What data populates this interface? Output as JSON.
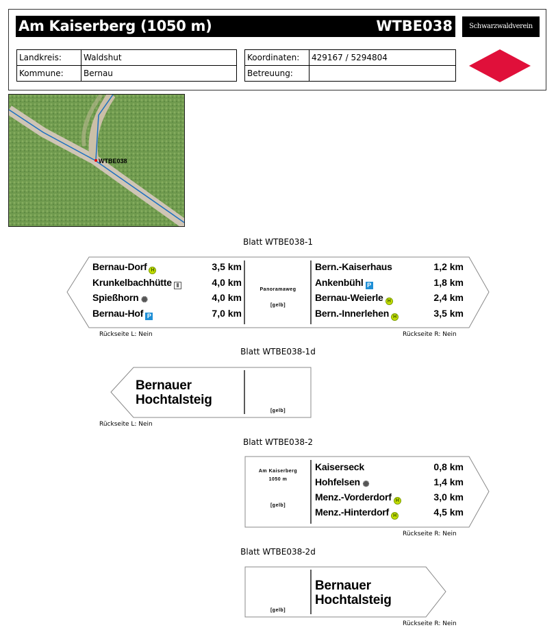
{
  "header": {
    "title": "Am Kaiserberg (1050 m)",
    "id": "WTBE038",
    "logo": "Schwarzwaldverein",
    "landkreis_label": "Landkreis:",
    "landkreis": "Waldshut",
    "kommune_label": "Kommune:",
    "kommune": "Bernau",
    "koordinaten_label": "Koordinaten:",
    "koordinaten": "429167 / 5294804",
    "betreuung_label": "Betreuung:",
    "betreuung": "",
    "diamond_color": "#e0103a"
  },
  "map": {
    "marker_label": "WTBE038",
    "route_color": "#1a6fc0"
  },
  "signs": [
    {
      "title": "Blatt WTBE038-1",
      "left": [
        {
          "name": "Bernau-Dorf",
          "icon": "bus-stop-icon",
          "km": "3,5 km"
        },
        {
          "name": "Krunkelbachhütte",
          "icon": "restaurant-icon",
          "km": "4,0 km"
        },
        {
          "name": "Spießhorn",
          "icon": "viewpoint-icon",
          "km": "4,0 km"
        },
        {
          "name": "Bernau-Hof",
          "icon": "parking-icon",
          "km": "7,0 km"
        }
      ],
      "center": {
        "route": "Panoramaweg",
        "color": "[gelb]"
      },
      "right": [
        {
          "name": "Bern.-Kaiserhaus",
          "icon": "",
          "km": "1,2 km"
        },
        {
          "name": "Ankenbühl",
          "icon": "parking-icon",
          "km": "1,8 km"
        },
        {
          "name": "Bernau-Weierle",
          "icon": "bus-stop-icon",
          "km": "2,4 km"
        },
        {
          "name": "Bern.-Innerlehen",
          "icon": "bus-stop-icon",
          "km": "3,5 km"
        }
      ],
      "back_left": "Rückseite L: Nein",
      "back_right": "Rückseite R: Nein"
    },
    {
      "title": "Blatt WTBE038-1d",
      "line1": "Bernauer",
      "line2": "Hochtalsteig",
      "color": "[gelb]",
      "back_left": "Rückseite L: Nein"
    },
    {
      "title": "Blatt WTBE038-2",
      "loc1": "Am Kaiserberg",
      "loc2": "1050 m",
      "color": "[gelb]",
      "right": [
        {
          "name": "Kaiserseck",
          "icon": "",
          "km": "0,8 km"
        },
        {
          "name": "Hohfelsen",
          "icon": "viewpoint-icon",
          "km": "1,4 km"
        },
        {
          "name": "Menz.-Vorderdorf",
          "icon": "bus-stop-icon",
          "km": "3,0 km"
        },
        {
          "name": "Menz.-Hinterdorf",
          "icon": "bus-stop-icon",
          "km": "4,5 km"
        }
      ],
      "back_right": "Rückseite R: Nein"
    },
    {
      "title": "Blatt WTBE038-2d",
      "line1": "Bernauer",
      "line2": "Hochtalsteig",
      "color": "[gelb]",
      "back_right": "Rückseite R: Nein"
    }
  ]
}
